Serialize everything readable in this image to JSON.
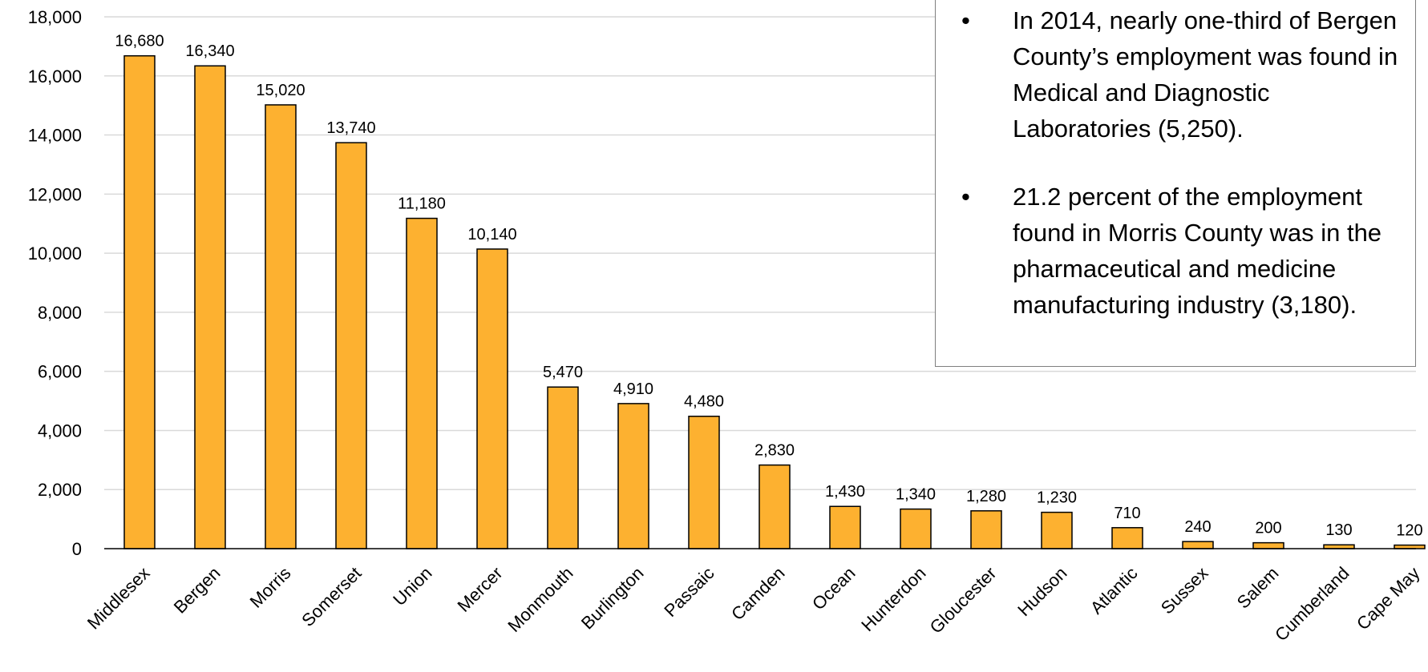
{
  "chart_data": {
    "type": "bar",
    "categories": [
      "Middlesex",
      "Bergen",
      "Morris",
      "Somerset",
      "Union",
      "Mercer",
      "Monmouth",
      "Burlington",
      "Passaic",
      "Camden",
      "Ocean",
      "Hunterdon",
      "Gloucester",
      "Hudson",
      "Atlantic",
      "Sussex",
      "Salem",
      "Cumberland",
      "Cape May"
    ],
    "values": [
      16680,
      16340,
      15020,
      13740,
      11180,
      10140,
      5470,
      4910,
      4480,
      2830,
      1430,
      1340,
      1280,
      1230,
      710,
      240,
      200,
      130,
      120
    ],
    "data_labels": [
      "16,680",
      "16,340",
      "15,020",
      "13,740",
      "11,180",
      "10,140",
      "5,470",
      "4,910",
      "4,480",
      "2,830",
      "1,430",
      "1,340",
      "1,280",
      "1,230",
      "710",
      "240",
      "200",
      "130",
      "120"
    ],
    "yticks": [
      0,
      2000,
      4000,
      6000,
      8000,
      10000,
      12000,
      14000,
      16000,
      18000
    ],
    "ytick_labels": [
      "0",
      "2,000",
      "4,000",
      "6,000",
      "8,000",
      "10,000",
      "12,000",
      "14,000",
      "16,000",
      "18,000"
    ],
    "ylim": [
      0,
      18000
    ],
    "title": "",
    "xlabel": "",
    "ylabel": "",
    "grid": true,
    "bar_color": "#FDB130",
    "bar_edge_color": "#000000",
    "grid_color": "#d9d9d9"
  },
  "notes": {
    "bullet": "•",
    "items": [
      "In 2014, nearly one-third of Bergen County’s employment was found in Medical and Diagnostic Laboratories (5,250).",
      "21.2 percent of the employment found in Morris County was in the pharmaceutical and medicine manufacturing industry (3,180)."
    ]
  }
}
